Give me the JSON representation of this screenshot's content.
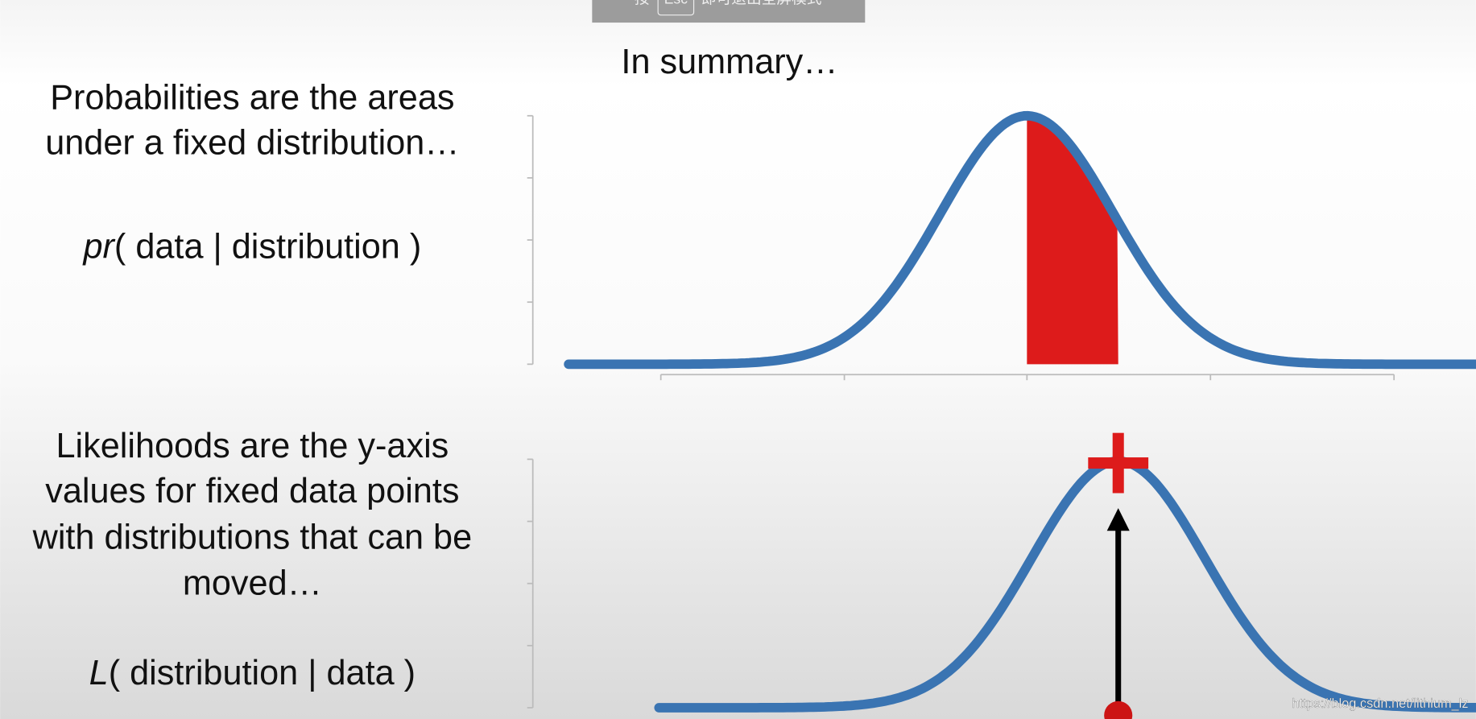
{
  "fullscreen_notice": {
    "prefix": "按",
    "key": "Esc",
    "suffix": "即可退出全屏模式"
  },
  "title": "In summary…",
  "probability": {
    "lines": [
      "Probabilities are the areas",
      "under a fixed distribution…"
    ],
    "formula_symbol": "pr",
    "formula_rest": "( data | distribution )"
  },
  "likelihood": {
    "lines": [
      "Likelihoods are the y-axis",
      "values for fixed data points",
      "with distributions that can be",
      "moved…"
    ],
    "formula_symbol": "L",
    "formula_rest": "( distribution | data )"
  },
  "watermark": "https://blog.csdn.net/lithium_lz"
}
